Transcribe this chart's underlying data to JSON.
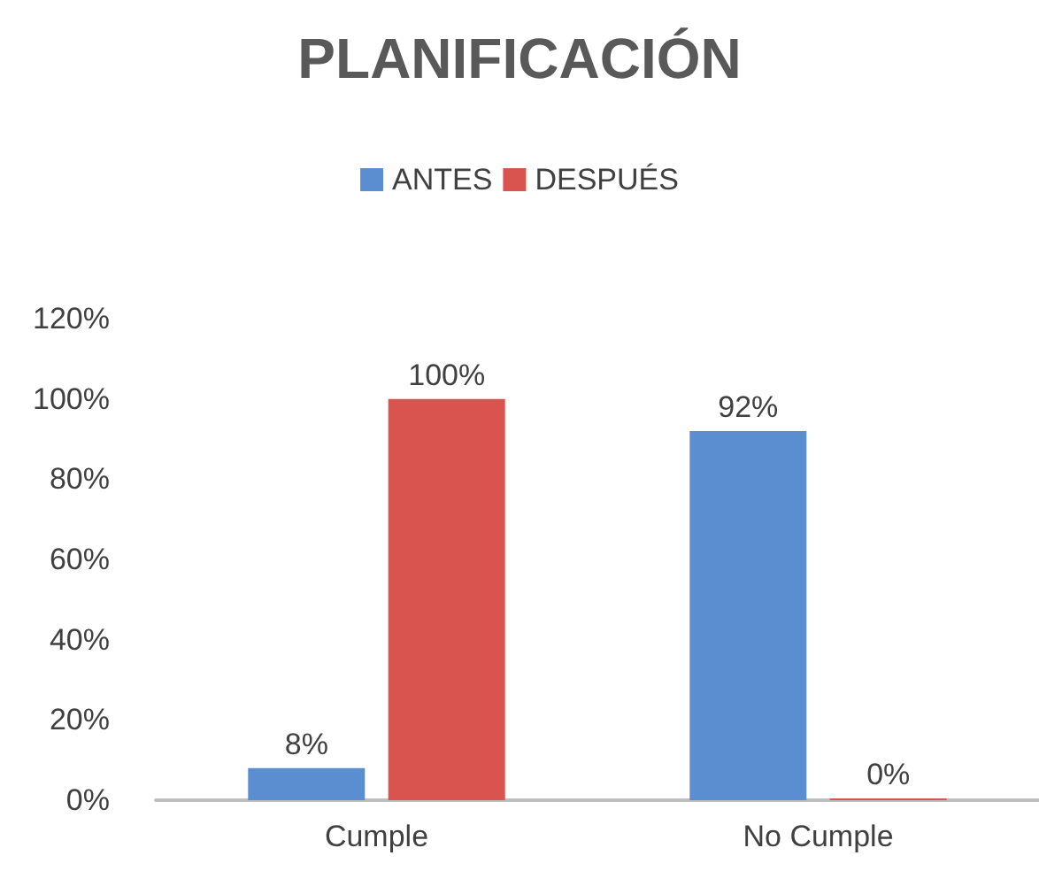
{
  "chart_data": {
    "type": "bar",
    "title": "PLANIFICACIÓN",
    "categories": [
      "Cumple",
      "No Cumple"
    ],
    "series": [
      {
        "name": "ANTES",
        "color": "#5b8ed0",
        "values": [
          8,
          92
        ],
        "value_labels": [
          "8%",
          "92%"
        ]
      },
      {
        "name": "DESPUÉS",
        "color": "#d9534f",
        "values": [
          100,
          0
        ],
        "value_labels": [
          "100%",
          "0%"
        ]
      }
    ],
    "ylim": [
      0,
      120
    ],
    "yticks": [
      {
        "value": 0,
        "label": "0%"
      },
      {
        "value": 20,
        "label": "20%"
      },
      {
        "value": 40,
        "label": "40%"
      },
      {
        "value": 60,
        "label": "60%"
      },
      {
        "value": 80,
        "label": "80%"
      },
      {
        "value": 100,
        "label": "100%"
      },
      {
        "value": 120,
        "label": "120%"
      }
    ],
    "grid": false,
    "legend": "top"
  }
}
